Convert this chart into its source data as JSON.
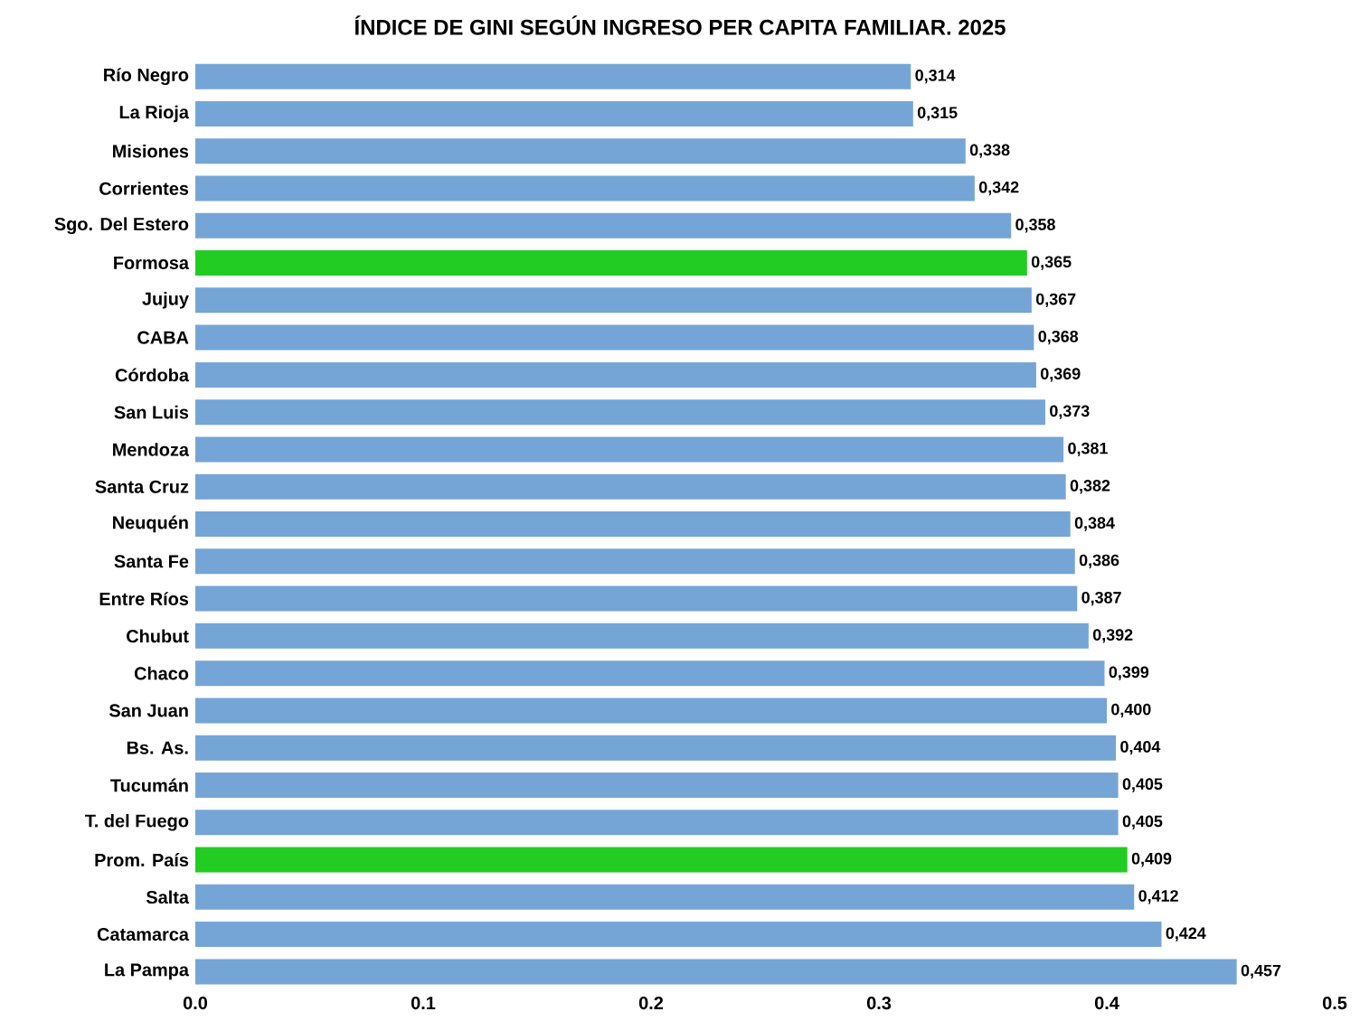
{
  "chart_data": {
    "type": "bar",
    "orientation": "horizontal",
    "title": "ÍNDICE DE GINI SEGÚN INGRESO PER CAPITA FAMILIAR. 2025",
    "categories": [
      "Río Negro",
      "La Rioja",
      "Misiones",
      "Corrientes",
      "Sgo. Del Estero",
      "Formosa",
      "Jujuy",
      "CABA",
      "Córdoba",
      "San Luis",
      "Mendoza",
      "Santa Cruz",
      "Neuquén",
      "Santa Fe",
      "Entre Ríos",
      "Chubut",
      "Chaco",
      "San Juan",
      "Bs. As.",
      "Tucumán",
      "T. del Fuego",
      "Prom. País",
      "Salta",
      "Catamarca",
      "La Pampa"
    ],
    "values": [
      0.314,
      0.315,
      0.338,
      0.342,
      0.358,
      0.365,
      0.367,
      0.368,
      0.369,
      0.373,
      0.381,
      0.382,
      0.384,
      0.386,
      0.387,
      0.392,
      0.399,
      0.4,
      0.404,
      0.405,
      0.405,
      0.409,
      0.412,
      0.424,
      0.457
    ],
    "value_labels": [
      "0,314",
      "0,315",
      "0,338",
      "0,342",
      "0,358",
      "0,365",
      "0,367",
      "0,368",
      "0,369",
      "0,373",
      "0,381",
      "0,382",
      "0,384",
      "0,386",
      "0,387",
      "0,392",
      "0,399",
      "0,400",
      "0,404",
      "0,405",
      "0,405",
      "0,409",
      "0,412",
      "0,424",
      "0,457"
    ],
    "colors": [
      "#75a5d6",
      "#75a5d6",
      "#75a5d6",
      "#75a5d6",
      "#75a5d6",
      "#22cc22",
      "#75a5d6",
      "#75a5d6",
      "#75a5d6",
      "#75a5d6",
      "#75a5d6",
      "#75a5d6",
      "#75a5d6",
      "#75a5d6",
      "#75a5d6",
      "#75a5d6",
      "#75a5d6",
      "#75a5d6",
      "#75a5d6",
      "#75a5d6",
      "#75a5d6",
      "#22cc22",
      "#75a5d6",
      "#75a5d6",
      "#75a5d6"
    ],
    "xlim": [
      0,
      0.5
    ],
    "xticks": [
      {
        "value": 0,
        "label": "0.0"
      },
      0.1,
      0.2,
      0.3,
      0.4,
      0.5
    ]
  }
}
